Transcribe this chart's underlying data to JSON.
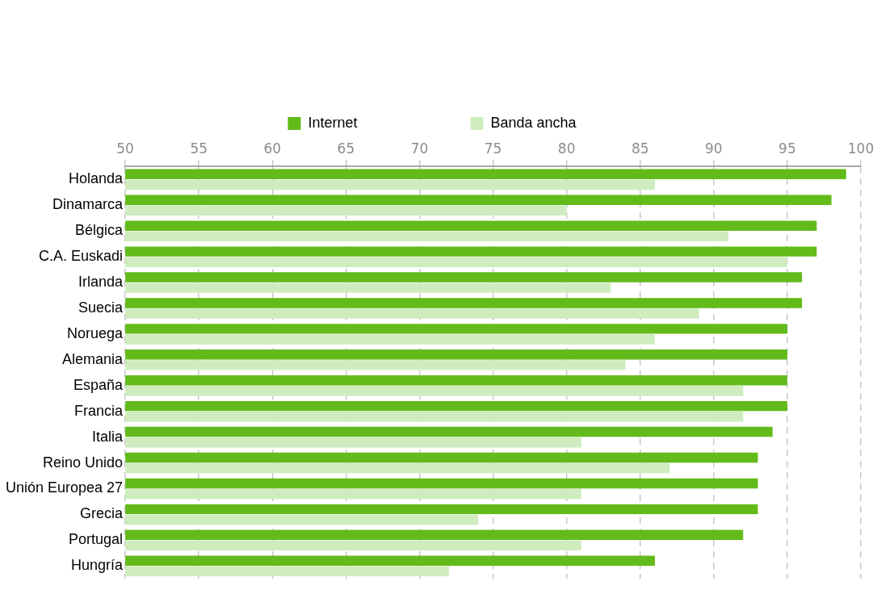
{
  "chart_data": {
    "type": "bar",
    "orientation": "horizontal",
    "categories": [
      "Holanda",
      "Dinamarca",
      "Bélgica",
      "C.A. Euskadi",
      "Irlanda",
      "Suecia",
      "Noruega",
      "Alemania",
      "España",
      "Francia",
      "Italia",
      "Reino Unido",
      "Unión Europea 27",
      "Grecia",
      "Portugal",
      "Hungría"
    ],
    "series": [
      {
        "name": "Internet",
        "color": "#62bb1a",
        "values": [
          99,
          98,
          97,
          97,
          96,
          96,
          95,
          95,
          95,
          95,
          94,
          93,
          93,
          93,
          92,
          86
        ]
      },
      {
        "name": "Banda ancha",
        "color": "#cfecbe",
        "values": [
          86,
          80,
          91,
          95,
          83,
          89,
          86,
          84,
          92,
          92,
          81,
          87,
          81,
          74,
          81,
          72
        ]
      }
    ],
    "xlim": [
      50,
      100
    ],
    "xticks": [
      50,
      55,
      60,
      65,
      70,
      75,
      80,
      85,
      90,
      95,
      100
    ],
    "grid": "x",
    "legend": "top"
  }
}
